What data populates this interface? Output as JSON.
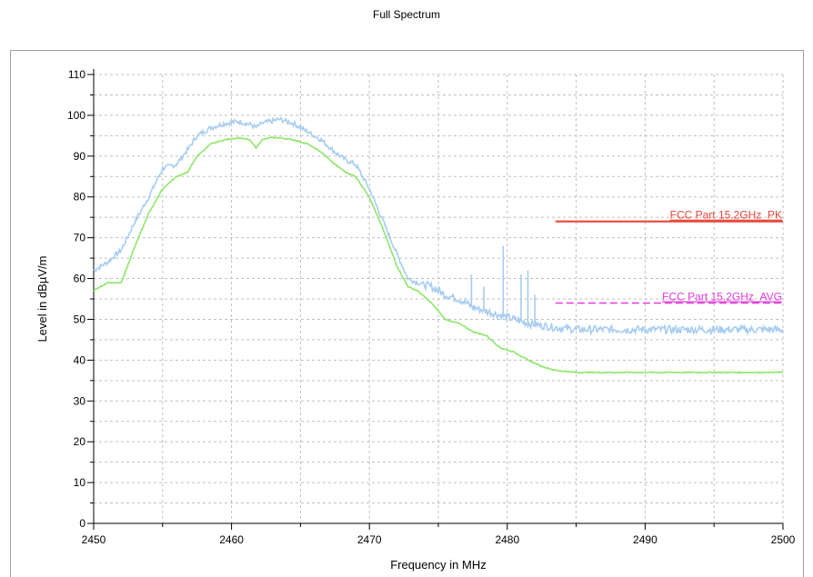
{
  "chart_data": {
    "type": "line",
    "title": "Full Spectrum",
    "xlabel": "Frequency in MHz",
    "ylabel": "Level in dBµV/m",
    "xlim": [
      2450,
      2500
    ],
    "ylim": [
      0,
      110
    ],
    "x_ticks": [
      2450,
      2460,
      2470,
      2480,
      2490,
      2500
    ],
    "y_ticks": [
      0,
      10,
      20,
      30,
      40,
      50,
      60,
      70,
      80,
      90,
      100,
      110
    ],
    "grid": true,
    "colors": {
      "peak_trace": "#a8cdf0",
      "avg_trace": "#8ee66a",
      "pk_limit": "#e8463a",
      "avg_limit": "#e03cdc",
      "grid": "#c0c0c0"
    },
    "series": [
      {
        "key": "peak",
        "x": [
          2450,
          2451,
          2452,
          2453,
          2454,
          2455,
          2456,
          2456.8,
          2457.5,
          2458.5,
          2459.5,
          2460.5,
          2461.3,
          2461.8,
          2462.2,
          2462.8,
          2463.5,
          2464.5,
          2465.5,
          2466.5,
          2467.5,
          2468.3,
          2469,
          2470,
          2471,
          2472,
          2472.8,
          2473.5,
          2474.5,
          2475.5,
          2476.5,
          2477.5,
          2478.5,
          2479.5,
          2480.5,
          2481.5,
          2482.5,
          2483.5,
          2485,
          2490,
          2495,
          2500
        ],
        "y": [
          62,
          64,
          67,
          74,
          80,
          87,
          88,
          91.5,
          95,
          97,
          98,
          98.5,
          97.8,
          97,
          98,
          98.5,
          99,
          98,
          96,
          94,
          91,
          89,
          88,
          82,
          74,
          66,
          60,
          59,
          58,
          56,
          55,
          53,
          52,
          51,
          50,
          49,
          48.5,
          48,
          47.5,
          47.5,
          47.5,
          47.5
        ]
      },
      {
        "key": "average",
        "x": [
          2450,
          2451,
          2452,
          2453,
          2454,
          2455,
          2456,
          2456.8,
          2457.5,
          2458.5,
          2459.5,
          2460.5,
          2461.3,
          2461.8,
          2462.2,
          2462.8,
          2463.5,
          2464.5,
          2465.5,
          2466.5,
          2467.5,
          2468.3,
          2469,
          2470,
          2471,
          2472,
          2472.8,
          2473.5,
          2474.5,
          2475.5,
          2476.5,
          2477.5,
          2478.5,
          2479.5,
          2480.5,
          2481.5,
          2482.5,
          2483.5,
          2485,
          2490,
          2495,
          2500
        ],
        "y": [
          57,
          59,
          59,
          68,
          76,
          82,
          85,
          86,
          90,
          93,
          94,
          94.5,
          94,
          92,
          94,
          94.5,
          94.5,
          94,
          93,
          91,
          88,
          86,
          85,
          80,
          72,
          63,
          58,
          57,
          54,
          50,
          49,
          47,
          46,
          43,
          42,
          40,
          38.5,
          37.5,
          37,
          37,
          37,
          37
        ]
      }
    ],
    "spikes": [
      {
        "x": 2477.4,
        "y": 61
      },
      {
        "x": 2478.3,
        "y": 58
      },
      {
        "x": 2479.7,
        "y": 68
      },
      {
        "x": 2481.0,
        "y": 61
      },
      {
        "x": 2481.5,
        "y": 62
      },
      {
        "x": 2482.0,
        "y": 56
      }
    ],
    "limits": [
      {
        "name": "FCC Part 15.2GHz_PK",
        "value": 74,
        "x_start": 2483.5,
        "x_end": 2500,
        "style": "solid"
      },
      {
        "name": "FCC Part 15.2GHz_AVG",
        "value": 54,
        "x_start": 2483.5,
        "x_end": 2500,
        "style": "dashed"
      }
    ]
  }
}
